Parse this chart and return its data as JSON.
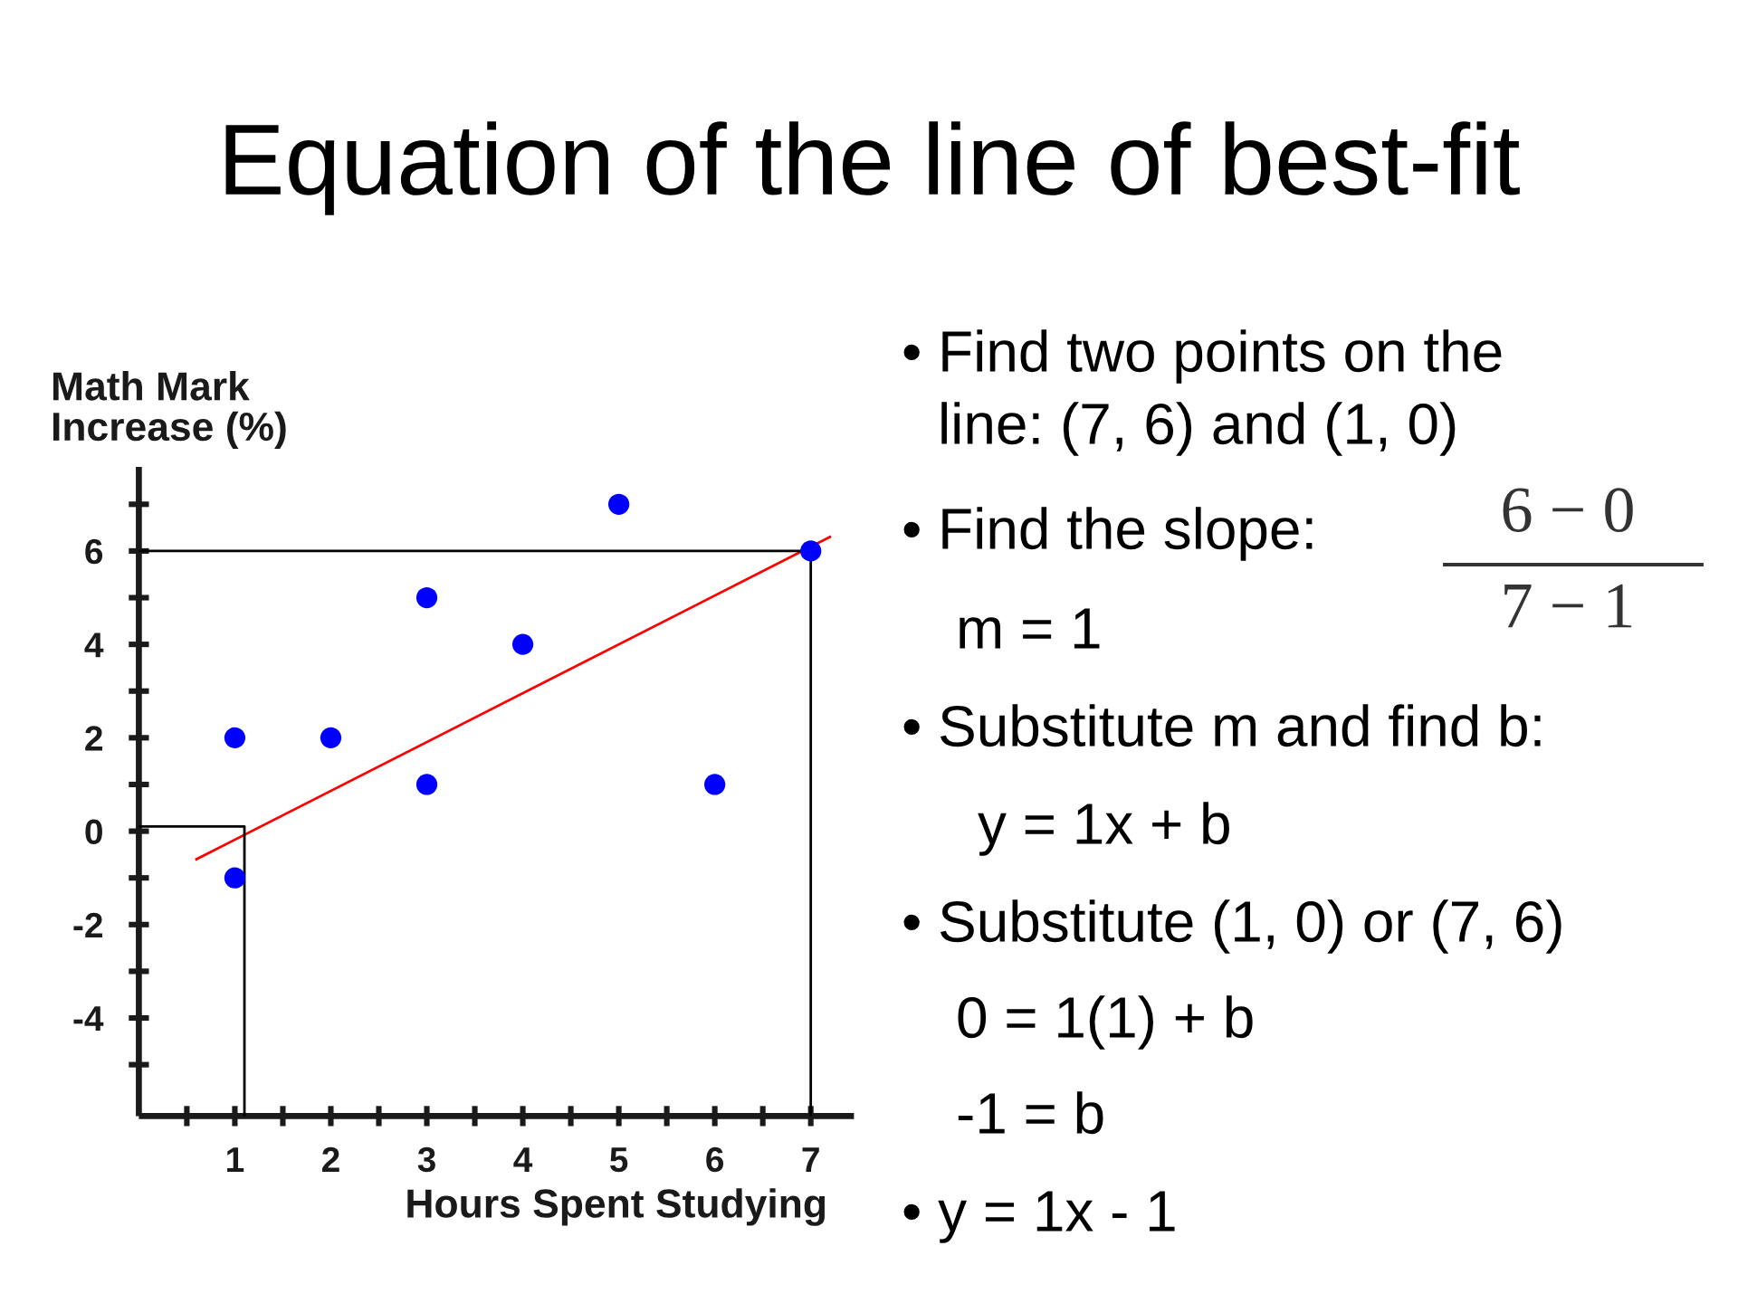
{
  "chart_data": {
    "type": "scatter",
    "title": "Equation of the line of best-fit",
    "xlabel": "Hours Spent Studying",
    "ylabel": "Math Mark\nIncrease (%)",
    "xlim": [
      0,
      7.45
    ],
    "ylim": [
      -6.1,
      7.8
    ],
    "xticks": [
      {
        "value": 0.5,
        "label": null
      },
      1,
      {
        "value": 1.5,
        "label": null
      },
      2,
      {
        "value": 2.5,
        "label": null
      },
      3,
      {
        "value": 3.5,
        "label": null
      },
      4,
      {
        "value": 4.5,
        "label": null
      },
      5,
      {
        "value": 5.5,
        "label": null
      },
      6,
      {
        "value": 6.5,
        "label": null
      },
      7
    ],
    "yticks": [
      {
        "value": -5,
        "label": null
      },
      -4,
      {
        "value": -3,
        "label": null
      },
      -2,
      {
        "value": -1,
        "label": null
      },
      0,
      {
        "value": 1,
        "label": null
      },
      2,
      {
        "value": 3,
        "label": null
      },
      4,
      {
        "value": 5,
        "label": null
      },
      6,
      {
        "value": 7,
        "label": null
      }
    ],
    "grid": false,
    "series": [
      {
        "color": "#0000ff",
        "marker": "circle",
        "x": [
          1,
          1,
          2,
          3,
          3,
          4,
          5,
          6,
          7
        ],
        "values": [
          2,
          -1,
          2,
          5,
          1,
          4,
          7,
          1,
          6
        ]
      },
      {
        "type": "line",
        "color": "#ff0000",
        "x": [
          0.6,
          7.2
        ],
        "values": [
          -0.6,
          6.3
        ]
      },
      {
        "type": "line",
        "color": "#000000",
        "x": [
          0,
          7,
          7
        ],
        "values": [
          6,
          6,
          -6.1
        ]
      },
      {
        "type": "line",
        "color": "#000000",
        "x": [
          0,
          1.1,
          1.1
        ],
        "values": [
          0.1,
          0.1,
          -6.1
        ]
      }
    ],
    "annotations": [
      "• Find two points on the",
      "line: (7, 6) and (1, 0)",
      "• Find the slope:",
      "6 − 0",
      "7 − 1",
      "m = 1",
      "• Substitute m and find b:",
      "y = 1x + b",
      "• Substitute (1, 0) or (7, 6)",
      "0 = 1(1) + b",
      "-1 = b",
      "• y = 1x - 1"
    ]
  }
}
